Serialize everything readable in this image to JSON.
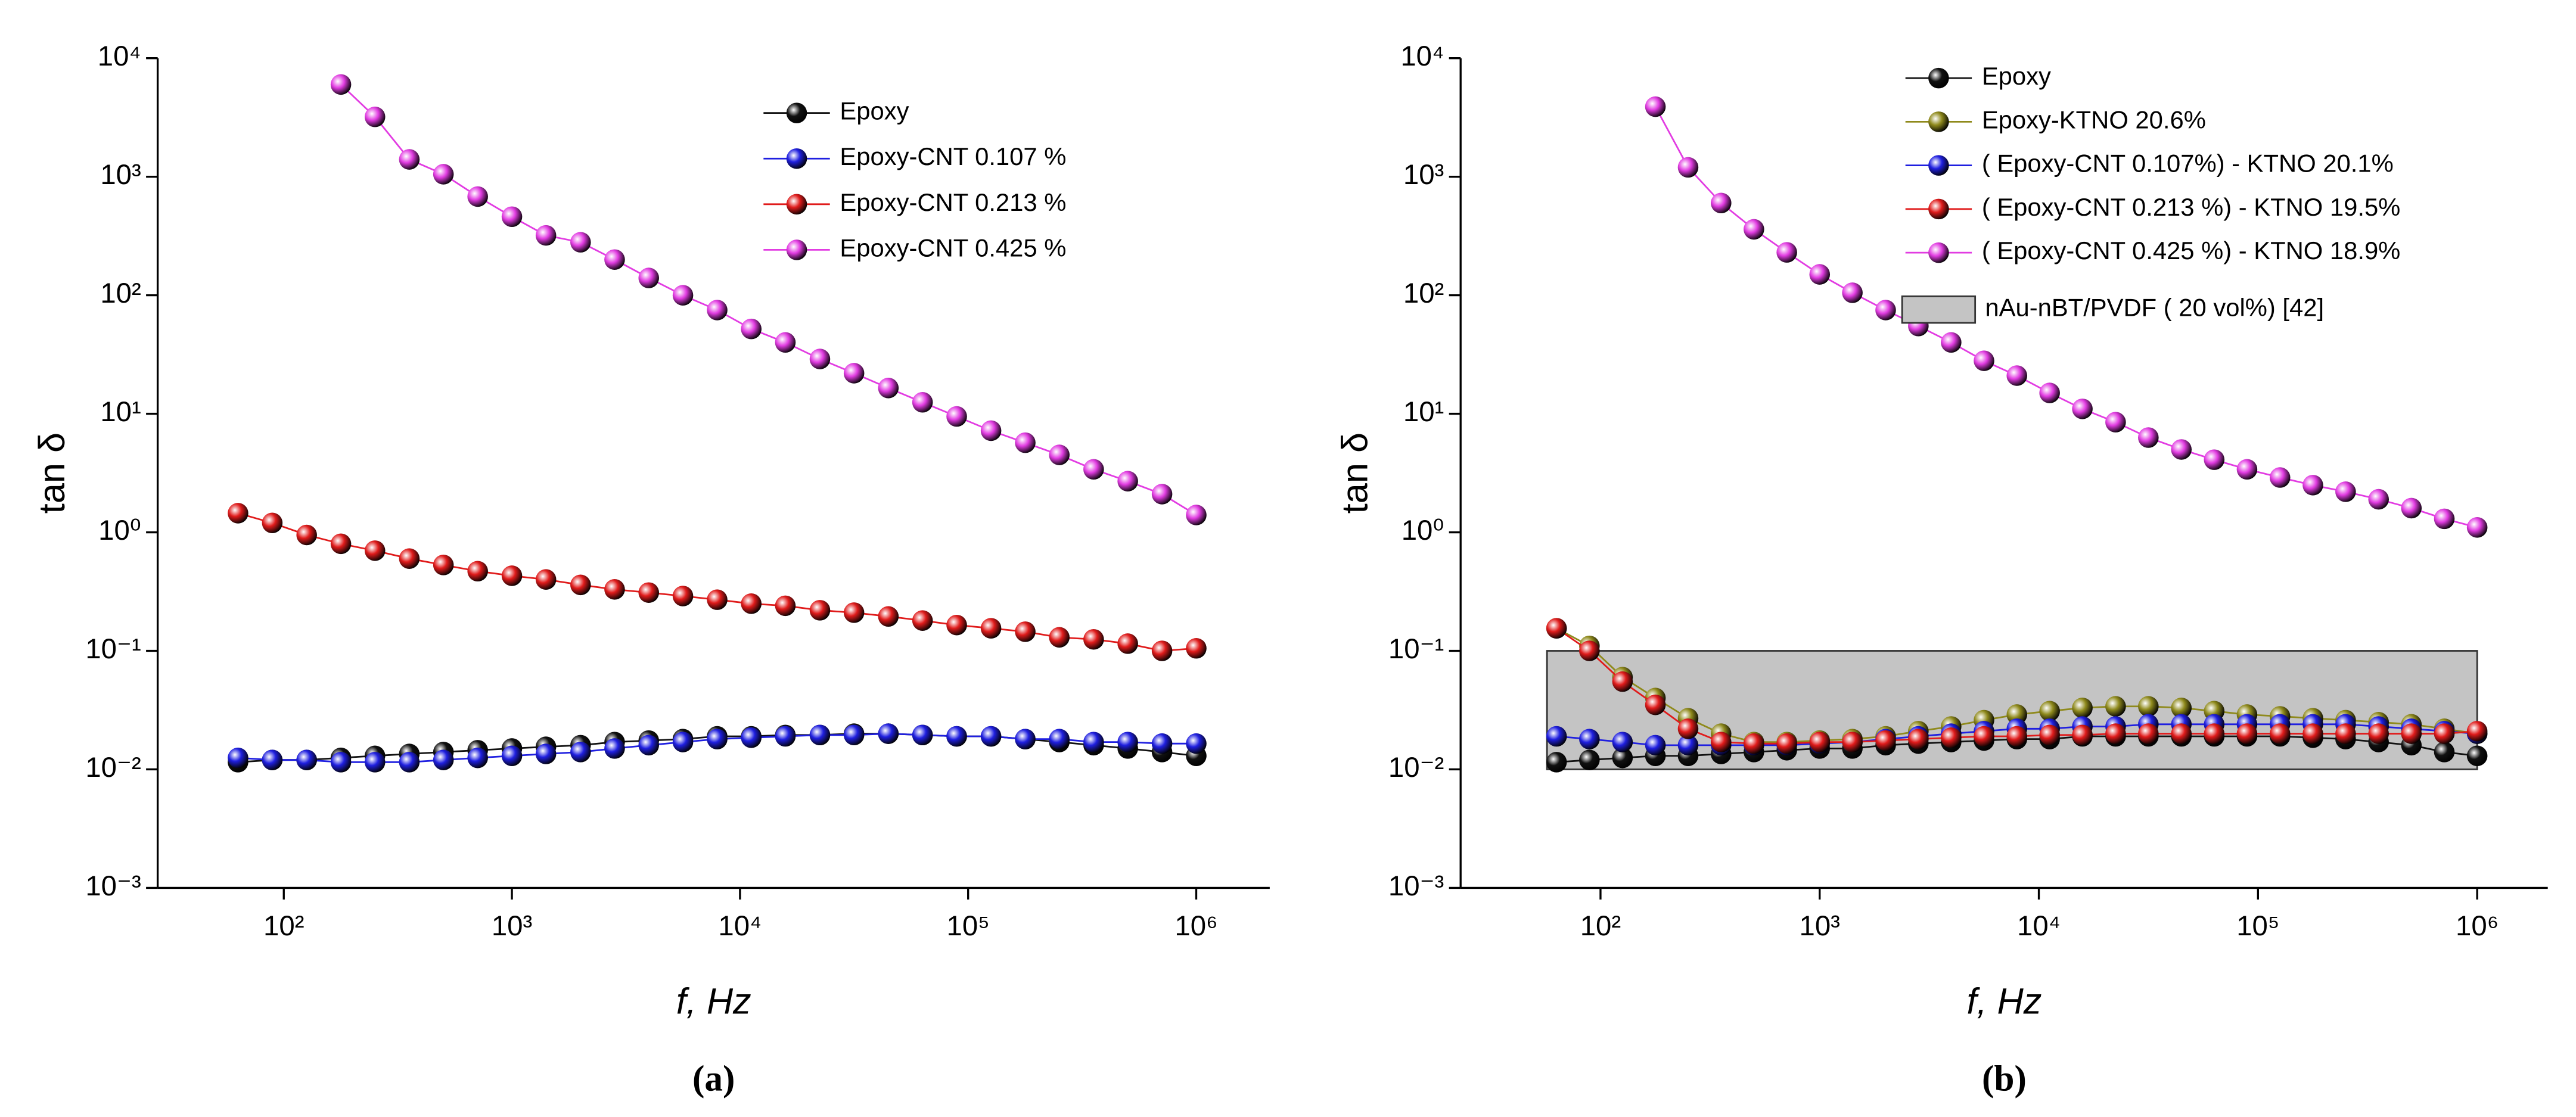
{
  "chart_data": [
    {
      "type": "line",
      "panel_label": "(a)",
      "xlabel": "f, Hz",
      "ylabel": "tan δ",
      "xscale": "log",
      "yscale": "log",
      "xlim": [
        28,
        2100000
      ],
      "ylim": [
        0.001,
        10000
      ],
      "xticks": [
        {
          "value": 100,
          "label": "10²"
        },
        {
          "value": 1000,
          "label": "10³"
        },
        {
          "value": 10000,
          "label": "10⁴"
        },
        {
          "value": 100000,
          "label": "10⁵"
        },
        {
          "value": 1000000,
          "label": "10⁶"
        }
      ],
      "yticks": [
        {
          "value": 0.001,
          "label": "10⁻³"
        },
        {
          "value": 0.01,
          "label": "10⁻²"
        },
        {
          "value": 0.1,
          "label": "10⁻¹"
        },
        {
          "value": 1,
          "label": "10⁰"
        },
        {
          "value": 10,
          "label": "10¹"
        },
        {
          "value": 100,
          "label": "10²"
        },
        {
          "value": 1000,
          "label": "10³"
        },
        {
          "value": 10000,
          "label": "10⁴"
        }
      ],
      "x": [
        63,
        89,
        126,
        178,
        251,
        355,
        501,
        708,
        1000,
        1410,
        2000,
        2820,
        3980,
        5620,
        7940,
        11200,
        15800,
        22400,
        31600,
        44700,
        63100,
        89100,
        126000,
        178000,
        251000,
        355000,
        501000,
        708000,
        1000000
      ],
      "series": [
        {
          "name": "Epoxy",
          "color": "#111111",
          "values": [
            0.0115,
            0.012,
            0.012,
            0.0125,
            0.013,
            0.0135,
            0.014,
            0.0145,
            0.015,
            0.0155,
            0.016,
            0.017,
            0.0175,
            0.018,
            0.019,
            0.019,
            0.0195,
            0.0195,
            0.02,
            0.02,
            0.0195,
            0.019,
            0.019,
            0.018,
            0.017,
            0.016,
            0.015,
            0.014,
            0.013
          ]
        },
        {
          "name": "Epoxy-CNT 0.107 %",
          "color": "#1f1fe0",
          "values": [
            0.0125,
            0.012,
            0.012,
            0.0115,
            0.0115,
            0.0115,
            0.012,
            0.0125,
            0.013,
            0.0135,
            0.014,
            0.015,
            0.016,
            0.017,
            0.018,
            0.0185,
            0.019,
            0.0195,
            0.0195,
            0.02,
            0.0195,
            0.019,
            0.019,
            0.018,
            0.018,
            0.017,
            0.017,
            0.0165,
            0.0165
          ]
        },
        {
          "name": "Epoxy-CNT 0.213 %",
          "color": "#e01b1b",
          "values": [
            1.45,
            1.2,
            0.95,
            0.8,
            0.7,
            0.6,
            0.53,
            0.47,
            0.43,
            0.4,
            0.36,
            0.33,
            0.31,
            0.29,
            0.27,
            0.25,
            0.24,
            0.22,
            0.21,
            0.195,
            0.18,
            0.165,
            0.155,
            0.145,
            0.13,
            0.125,
            0.115,
            0.1,
            0.105
          ]
        },
        {
          "name": "Epoxy-CNT 0.425 %",
          "color": "#e23ce2",
          "values": [
            null,
            null,
            null,
            6000,
            3200,
            1400,
            1050,
            680,
            460,
            320,
            280,
            200,
            140,
            100,
            75,
            52,
            40,
            29,
            22,
            16.5,
            12.5,
            9.5,
            7.2,
            5.7,
            4.5,
            3.4,
            2.7,
            2.1,
            1.4
          ]
        }
      ]
    },
    {
      "type": "line",
      "panel_label": "(b)",
      "xlabel": "f, Hz",
      "ylabel": "tan δ",
      "xscale": "log",
      "yscale": "log",
      "xlim": [
        23,
        2100000
      ],
      "ylim": [
        0.001,
        10000
      ],
      "xticks": [
        {
          "value": 100,
          "label": "10²"
        },
        {
          "value": 1000,
          "label": "10³"
        },
        {
          "value": 10000,
          "label": "10⁴"
        },
        {
          "value": 100000,
          "label": "10⁵"
        },
        {
          "value": 1000000,
          "label": "10⁶"
        }
      ],
      "yticks": [
        {
          "value": 0.001,
          "label": "10⁻³"
        },
        {
          "value": 0.01,
          "label": "10⁻²"
        },
        {
          "value": 0.1,
          "label": "10⁻¹"
        },
        {
          "value": 1,
          "label": "10⁰"
        },
        {
          "value": 10,
          "label": "10¹"
        },
        {
          "value": 100,
          "label": "10²"
        },
        {
          "value": 1000,
          "label": "10³"
        },
        {
          "value": 10000,
          "label": "10⁴"
        }
      ],
      "x": [
        63,
        89,
        126,
        178,
        251,
        355,
        501,
        708,
        1000,
        1410,
        2000,
        2820,
        3980,
        5620,
        7940,
        11200,
        15800,
        22400,
        31600,
        44700,
        63100,
        89100,
        126000,
        178000,
        251000,
        355000,
        501000,
        708000,
        1000000
      ],
      "band": {
        "name": "nAu-nBT/PVDF  ( 20 vol%)  [42]",
        "color": "#c4c4c4",
        "x": [
          57,
          1000000
        ],
        "y": [
          0.01,
          0.1
        ]
      },
      "series": [
        {
          "name": "Epoxy",
          "color": "#111111",
          "values": [
            0.0115,
            0.012,
            0.0125,
            0.013,
            0.013,
            0.0135,
            0.014,
            0.0145,
            0.015,
            0.015,
            0.016,
            0.0165,
            0.017,
            0.0175,
            0.018,
            0.018,
            0.019,
            0.019,
            0.019,
            0.019,
            0.019,
            0.019,
            0.019,
            0.0185,
            0.018,
            0.017,
            0.016,
            0.014,
            0.013
          ]
        },
        {
          "name": "Epoxy-KTNO 20.6%",
          "color": "#8f8a1c",
          "values": [
            0.155,
            0.11,
            0.06,
            0.04,
            0.027,
            0.02,
            0.017,
            0.017,
            0.0175,
            0.018,
            0.019,
            0.021,
            0.023,
            0.026,
            0.029,
            0.031,
            0.033,
            0.034,
            0.034,
            0.033,
            0.031,
            0.029,
            0.028,
            0.027,
            0.026,
            0.025,
            0.024,
            0.022,
            0.02
          ]
        },
        {
          "name": "( Epoxy-CNT 0.107%)   - KTNO 20.1%",
          "color": "#1f1fe0",
          "values": [
            0.019,
            0.018,
            0.017,
            0.016,
            0.016,
            0.016,
            0.016,
            0.016,
            0.0165,
            0.017,
            0.018,
            0.019,
            0.02,
            0.021,
            0.022,
            0.022,
            0.023,
            0.023,
            0.024,
            0.024,
            0.024,
            0.024,
            0.024,
            0.024,
            0.024,
            0.023,
            0.022,
            0.021,
            0.02
          ]
        },
        {
          "name": "( Epoxy-CNT 0.213 %)   - KTNO 19.5%",
          "color": "#e01b1b",
          "values": [
            0.155,
            0.1,
            0.055,
            0.035,
            0.022,
            0.017,
            0.0165,
            0.0165,
            0.017,
            0.017,
            0.0175,
            0.018,
            0.0185,
            0.019,
            0.019,
            0.0195,
            0.0195,
            0.02,
            0.02,
            0.02,
            0.02,
            0.02,
            0.02,
            0.02,
            0.02,
            0.02,
            0.02,
            0.02,
            0.021
          ]
        },
        {
          "name": "( Epoxy-CNT 0.425 %)   - KTNO 18.9%",
          "color": "#e23ce2",
          "values": [
            null,
            null,
            null,
            3900,
            1200,
            600,
            360,
            230,
            150,
            105,
            75,
            55,
            40,
            28,
            21,
            15,
            11,
            8.5,
            6.3,
            5,
            4.1,
            3.4,
            2.9,
            2.5,
            2.2,
            1.9,
            1.6,
            1.3,
            1.1
          ]
        }
      ]
    }
  ]
}
